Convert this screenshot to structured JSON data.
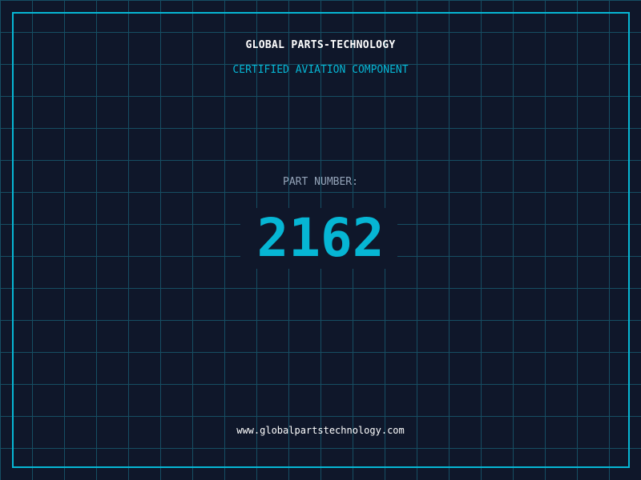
{
  "header": {
    "title": "GLOBAL PARTS-TECHNOLOGY",
    "subtitle": "CERTIFIED AVIATION COMPONENT"
  },
  "part": {
    "label": "PART NUMBER:",
    "number": "2162"
  },
  "footer": {
    "url": "www.globalpartstechnology.com"
  },
  "colors": {
    "background": "#0f172a",
    "grid": "#164e63",
    "accent": "#06b6d4",
    "label": "#94a3b8"
  }
}
